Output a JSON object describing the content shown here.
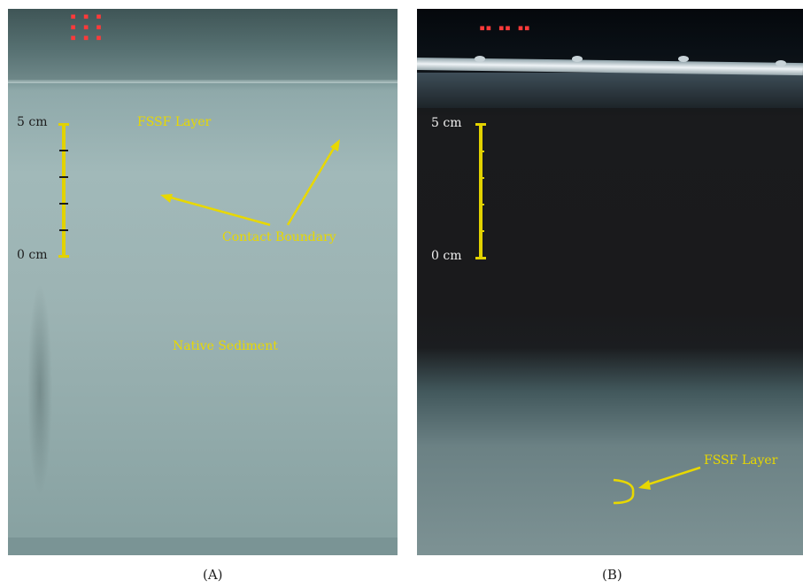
{
  "panel_a": {
    "caption": "(A)",
    "scale_top": "5 cm",
    "scale_bottom": "0 cm",
    "layer_label": "FSSF Layer",
    "boundary_label": "Contact Boundary",
    "sediment_label": "Native Sediment"
  },
  "panel_b": {
    "caption": "(B)",
    "scale_top": "5 cm",
    "scale_bottom": "0 cm",
    "layer_label": "FSSF Layer"
  },
  "colors": {
    "annotation": "#e8d800",
    "stamp": "#ff3a3a"
  }
}
